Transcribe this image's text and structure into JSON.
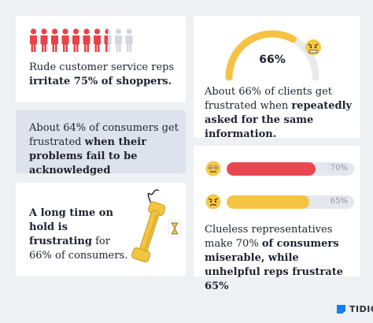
{
  "card1": {
    "people_total": 10,
    "people_highlighted": 7.5,
    "text_pre": "Rude customer service reps ",
    "text_bold": "irritate 75% of shoppers.",
    "colors": {
      "highlight": "#e8434a",
      "rest": "#d3d7de"
    }
  },
  "card2": {
    "gauge_value": "66%",
    "gauge_fraction": 0.66,
    "text_pre": "About 66% of clients get frustrated when ",
    "text_bold": "repeatedly asked for the same information.",
    "colors": {
      "arc": "#f5c244",
      "track": "#e7eaef"
    },
    "icon": "frustrated-face-icon"
  },
  "card3": {
    "text_pre": "About 64% of consumers get frustrated ",
    "text_bold": "when their problems fail to be acknowledged"
  },
  "card4": {
    "text_bold": "A long time on hold is frustrating",
    "text_post": " for 66% of consumers.",
    "icon": "phone-handset-icon"
  },
  "card5": {
    "bars": [
      {
        "label": "70%",
        "value": 0.7,
        "color": "#ea4651",
        "icon": "miserable-face-icon"
      },
      {
        "label": "65%",
        "value": 0.65,
        "color": "#f6c345",
        "icon": "angry-face-icon"
      }
    ],
    "text_pre": "Clueless representatives make 70% ",
    "text_bold": "of consumers miserable, while unhelpful reps frustrate 65%"
  },
  "logo": {
    "text": "TIDIO",
    "color": "#1a7cf3"
  }
}
